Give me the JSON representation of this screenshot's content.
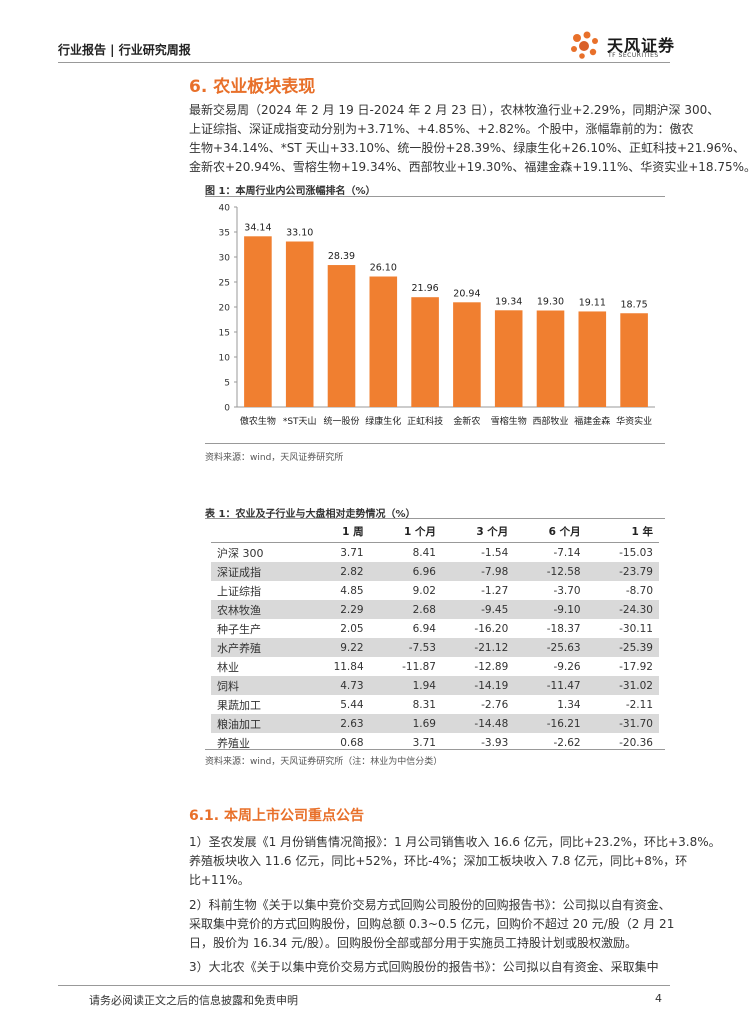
{
  "header": {
    "left": "行业报告 | 行业研究周报",
    "logo_cn": "天风证券",
    "logo_en": "TF SECURITIES"
  },
  "section": {
    "title": "6. 农业板块表现"
  },
  "intro": [
    "最新交易周（2024 年 2 月 19 日-2024 年 2 月 23 日），农林牧渔行业+2.29%，同期沪深 300、",
    "上证综指、深证成指变动分别为+3.71%、+4.85%、+2.82%。个股中，涨幅靠前的为：傲农",
    "生物+34.14%、*ST 天山+33.10%、统一股份+28.39%、绿康生化+26.10%、正虹科技+21.96%、",
    "金新农+20.94%、雪榕生物+19.34%、西部牧业+19.30%、福建金森+19.11%、华资实业+18.75%。"
  ],
  "figure1": {
    "caption": "图 1：本周行业内公司涨幅排名（%）",
    "source": "资料来源：wind，天风证券研究所"
  },
  "chart_data": {
    "type": "bar",
    "categories": [
      "傲农生物",
      "*ST天山",
      "统一股份",
      "绿康生化",
      "正虹科技",
      "金新农",
      "雪榕生物",
      "西部牧业",
      "福建金森",
      "华资实业"
    ],
    "values": [
      34.14,
      33.1,
      28.39,
      26.1,
      21.96,
      20.94,
      19.34,
      19.3,
      19.11,
      18.75
    ],
    "value_labels": [
      "34.14",
      "33.10",
      "28.39",
      "26.10",
      "21.96",
      "20.94",
      "19.34",
      "19.30",
      "19.11",
      "18.75"
    ],
    "yticks": [
      0,
      5,
      10,
      15,
      20,
      25,
      30,
      35,
      40
    ],
    "ylim": [
      0,
      40
    ],
    "bar_color": "#f07f30",
    "grid": false
  },
  "table1": {
    "caption": "表 1：农业及子行业与大盘相对走势情况（%）",
    "headers": [
      "",
      "1 周",
      "1 个月",
      "3 个月",
      "6 个月",
      "1 年"
    ],
    "rows": [
      [
        "沪深 300",
        "3.71",
        "8.41",
        "-1.54",
        "-7.14",
        "-15.03"
      ],
      [
        "深证成指",
        "2.82",
        "6.96",
        "-7.98",
        "-12.58",
        "-23.79"
      ],
      [
        "上证综指",
        "4.85",
        "9.02",
        "-1.27",
        "-3.70",
        "-8.70"
      ],
      [
        "农林牧渔",
        "2.29",
        "2.68",
        "-9.45",
        "-9.10",
        "-24.30"
      ],
      [
        "种子生产",
        "2.05",
        "6.94",
        "-16.20",
        "-18.37",
        "-30.11"
      ],
      [
        "水产养殖",
        "9.22",
        "-7.53",
        "-21.12",
        "-25.63",
        "-25.39"
      ],
      [
        "林业",
        "11.84",
        "-11.87",
        "-12.89",
        "-9.26",
        "-17.92"
      ],
      [
        "饲料",
        "4.73",
        "1.94",
        "-14.19",
        "-11.47",
        "-31.02"
      ],
      [
        "果蔬加工",
        "5.44",
        "8.31",
        "-2.76",
        "1.34",
        "-2.11"
      ],
      [
        "粮油加工",
        "2.63",
        "1.69",
        "-14.48",
        "-16.21",
        "-31.70"
      ],
      [
        "养殖业",
        "0.68",
        "3.71",
        "-3.93",
        "-2.62",
        "-20.36"
      ]
    ],
    "source": "资料来源：wind，天风证券研究所（注：林业为中信分类）"
  },
  "subsection": {
    "title": "6.1. 本周上市公司重点公告",
    "lines": [
      "1）圣农发展《1 月份销售情况简报》：1 月公司销售收入 16.6 亿元，同比+23.2%，环比+3.8%。",
      "养殖板块收入 11.6 亿元，同比+52%，环比-4%；深加工板块收入 7.8 亿元，同比+8%，环",
      "比+11%。",
      "2）科前生物《关于以集中竞价交易方式回购公司股份的回购报告书》：公司拟以自有资金、",
      "采取集中竞价的方式回购股份，回购总额 0.3~0.5 亿元，回购价不超过 20 元/股（2 月 21",
      "日，股价为 16.34 元/股）。回购股份全部或部分用于实施员工持股计划或股权激励。",
      "3）大北农《关于以集中竞价交易方式回购股份的报告书》：公司拟以自有资金、采取集中"
    ]
  },
  "footer": {
    "disclaimer": "请务必阅读正文之后的信息披露和免责申明",
    "page": "4"
  }
}
